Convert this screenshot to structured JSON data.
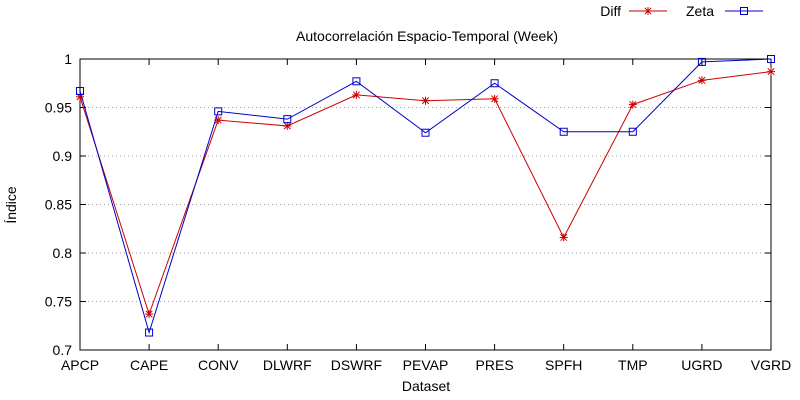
{
  "chart_data": {
    "type": "line",
    "title": "Autocorrelación Espacio-Temporal (Week)",
    "xlabel": "Dataset",
    "ylabel": "Índice",
    "categories": [
      "APCP",
      "CAPE",
      "CONV",
      "DLWRF",
      "DSWRF",
      "PEVAP",
      "PRES",
      "SPFH",
      "TMP",
      "UGRD",
      "VGRD"
    ],
    "ylim": [
      0.7,
      1.0
    ],
    "yticks": [
      0.7,
      0.75,
      0.8,
      0.85,
      0.9,
      0.95,
      1.0
    ],
    "ytick_labels": [
      "0.7",
      "0.75",
      "0.8",
      "0.85",
      "0.9",
      "0.95",
      "1"
    ],
    "grid": true,
    "legend_position": "top-right",
    "series": [
      {
        "name": "Diff",
        "color": "#cc0000",
        "marker": "star",
        "values": [
          0.961,
          0.737,
          0.937,
          0.931,
          0.963,
          0.957,
          0.959,
          0.816,
          0.953,
          0.978,
          0.987
        ]
      },
      {
        "name": "Zeta",
        "color": "#0000cc",
        "marker": "square",
        "values": [
          0.967,
          0.718,
          0.946,
          0.938,
          0.977,
          0.924,
          0.975,
          0.925,
          0.925,
          0.997,
          1.0
        ]
      }
    ]
  }
}
